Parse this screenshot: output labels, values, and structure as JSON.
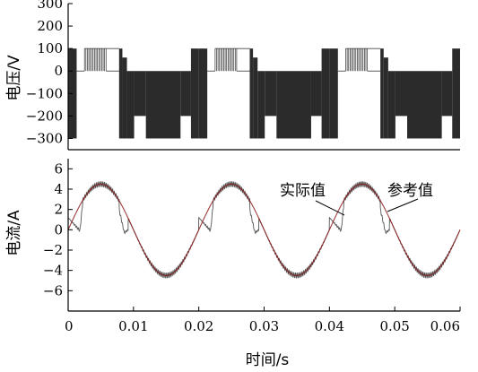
{
  "chart_data": [
    {
      "type": "line",
      "ylabel": "电压/V",
      "xlim": [
        0,
        0.06
      ],
      "ylim": [
        -350,
        300
      ],
      "yticks": [
        300,
        200,
        100,
        0,
        -100,
        -200,
        -300
      ],
      "ytick_labels": [
        "300",
        "200",
        "100",
        "0",
        "−100",
        "−200",
        "−300"
      ],
      "grid": false,
      "legend": "none",
      "series": [
        {
          "style": "PWM voltage envelope",
          "periods": [
            {
              "t_start": 0.0,
              "segments": [
                {
                  "t": [
                    0.0,
                    0.0013
                  ],
                  "level_top": 100,
                  "level_bottom": -300,
                  "style": "dense"
                },
                {
                  "t": [
                    0.0013,
                    0.0025
                  ],
                  "level_top": 0,
                  "level_bottom": 0,
                  "style": "line"
                },
                {
                  "t": [
                    0.0025,
                    0.0058
                  ],
                  "level_top": 100,
                  "level_bottom": 0,
                  "style": "sparse"
                },
                {
                  "t": [
                    0.0058,
                    0.0078
                  ],
                  "level_top": 100,
                  "level_bottom": 0,
                  "style": "line"
                },
                {
                  "t": [
                    0.0078,
                    0.0083
                  ],
                  "level_top": 100,
                  "level_bottom": -300,
                  "style": "dense"
                },
                {
                  "t": [
                    0.0083,
                    0.009
                  ],
                  "level_top": 60,
                  "level_bottom": -300,
                  "style": "dense"
                },
                {
                  "t": [
                    0.009,
                    0.0101
                  ],
                  "level_top": 0,
                  "level_bottom": -300,
                  "style": "dense"
                },
                {
                  "t": [
                    0.0101,
                    0.0119
                  ],
                  "level_top": 0,
                  "level_bottom": -200,
                  "style": "dense"
                },
                {
                  "t": [
                    0.0119,
                    0.0172
                  ],
                  "level_top": 0,
                  "level_bottom": -300,
                  "style": "dense"
                },
                {
                  "t": [
                    0.0172,
                    0.0188
                  ],
                  "level_top": 0,
                  "level_bottom": -200,
                  "style": "dense"
                },
                {
                  "t": [
                    0.0188,
                    0.02
                  ],
                  "level_top": 100,
                  "level_bottom": -300,
                  "style": "dense"
                }
              ]
            },
            {
              "t_start": 0.02,
              "repeat_of_period": 0
            },
            {
              "t_start": 0.04,
              "repeat_of_period": 0
            }
          ]
        }
      ]
    },
    {
      "type": "line",
      "xlabel": "时间/s",
      "ylabel": "电流/A",
      "xlim": [
        0,
        0.06
      ],
      "ylim": [
        -8,
        7
      ],
      "xticks": [
        0,
        0.01,
        0.02,
        0.03,
        0.04,
        0.05,
        0.06
      ],
      "xtick_labels": [
        "0",
        "0.01",
        "0.02",
        "0.03",
        "0.04",
        "0.05",
        "0.06"
      ],
      "yticks": [
        6,
        4,
        2,
        0,
        -2,
        -4,
        -6
      ],
      "ytick_labels": [
        "6",
        "4",
        "2",
        "0",
        "−2",
        "−4",
        "−6"
      ],
      "grid": false,
      "legend": "none",
      "series": [
        {
          "name": "参考值",
          "amplitude": 4.5,
          "frequency_hz": 50,
          "phase_deg": 0
        },
        {
          "name": "实际值",
          "amplitude": 4.5,
          "frequency_hz": 50,
          "ripple_amplitude": 0.25,
          "distortion_points": [
            {
              "t": 0.0,
              "i": 1.2
            },
            {
              "t": 0.0018,
              "i": -0.1
            },
            {
              "t": 0.0022,
              "i": 2.5
            },
            {
              "t": 0.0078,
              "i": 2.0
            },
            {
              "t": 0.0086,
              "i": -0.3
            },
            {
              "t": 0.0092,
              "i": 0.0
            }
          ]
        }
      ],
      "annotations": [
        {
          "text": "实际值",
          "points_to": {
            "x": 0.0425,
            "y": 1.7
          }
        },
        {
          "text": "参考值",
          "points_to": {
            "x": 0.0485,
            "y": 1.3
          }
        }
      ]
    }
  ]
}
